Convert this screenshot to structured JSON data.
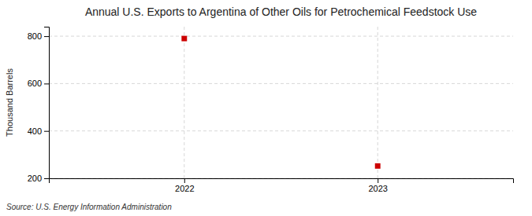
{
  "chart_data": {
    "type": "scatter",
    "title": "Annual U.S. Exports to Argentina of Other Oils for Petrochemical Feedstock Use",
    "y_label": "Thousand Barrels",
    "source": "Source: U.S. Energy Information Administration",
    "x": [
      2022,
      2023
    ],
    "values": [
      790,
      252
    ],
    "color": "#cc0000",
    "marker": "square",
    "xlim": [
      2021.3,
      2023.7
    ],
    "xticks": [
      2022,
      2023
    ],
    "ylim": [
      200,
      840
    ],
    "yticks": [
      200,
      400,
      600,
      800
    ],
    "grid": true
  }
}
